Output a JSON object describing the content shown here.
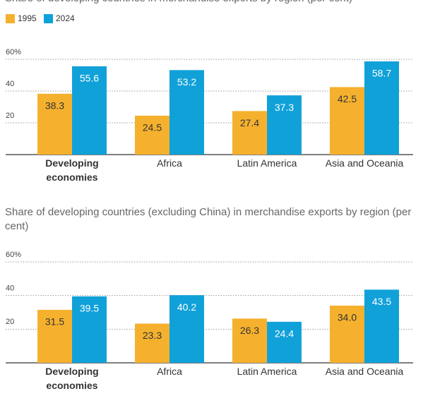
{
  "chart_data": [
    {
      "type": "bar",
      "title": "Share of developing countries in merchandise exports by region (per cent)",
      "categories": [
        "Developing economies",
        "Africa",
        "Latin America",
        "Asia and Oceania"
      ],
      "series": [
        {
          "name": "1995",
          "color": "#f5b12e",
          "values": [
            38.3,
            24.5,
            27.4,
            42.5
          ]
        },
        {
          "name": "2024",
          "color": "#11a1d9",
          "values": [
            55.6,
            53.2,
            37.3,
            58.7
          ]
        }
      ],
      "ylim": [
        0,
        60
      ],
      "yticks": [
        20,
        40,
        {
          "value": 60,
          "label": "60%"
        }
      ],
      "grid": true
    },
    {
      "type": "bar",
      "title": "Share of developing countries (excluding China) in merchandise exports by region (per cent)",
      "categories": [
        "Developing economies",
        "Africa",
        "Latin America",
        "Asia and Oceania"
      ],
      "series": [
        {
          "name": "1995",
          "color": "#f5b12e",
          "values": [
            31.5,
            23.3,
            26.3,
            34.0
          ]
        },
        {
          "name": "2024",
          "color": "#11a1d9",
          "values": [
            39.5,
            40.2,
            24.4,
            43.5
          ]
        }
      ],
      "value_labels": [
        [
          "31.5",
          "23.3",
          "26.3",
          "34.0"
        ],
        [
          "39.5",
          "40.2",
          "24.4",
          "43.5"
        ]
      ],
      "ylim": [
        0,
        60
      ],
      "yticks": [
        20,
        40,
        {
          "value": 60,
          "label": "60%"
        }
      ],
      "grid": true
    }
  ]
}
